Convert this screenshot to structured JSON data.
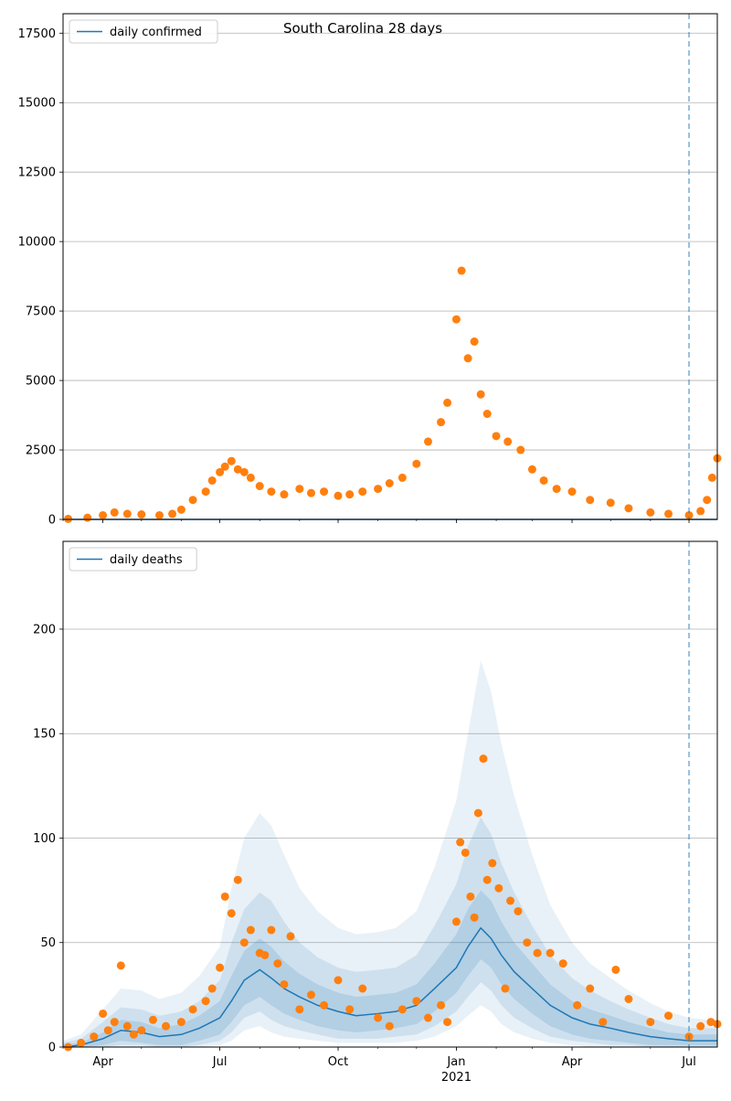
{
  "chart_data": [
    {
      "type": "scatter",
      "title": "South Carolina 28 days",
      "xlabel": "",
      "ylabel": "",
      "ylim": [
        0,
        18200
      ],
      "yticks": [
        0,
        2500,
        5000,
        7500,
        10000,
        12500,
        15000,
        17500
      ],
      "ytick_labels": [
        "0",
        "2500",
        "5000",
        "7500",
        "10000",
        "12500",
        "15000",
        "17500"
      ],
      "grid": "horizontal",
      "legend_position": "top-left",
      "series": [
        {
          "name": "daily confirmed",
          "kind": "line",
          "color": "#1f77b4",
          "x": [
            "2020-03-01",
            "2021-07-23"
          ],
          "y": [
            0,
            0
          ]
        },
        {
          "kind": "scatter",
          "color": "#ff7f0e",
          "x": [
            "2020-03-05",
            "2020-03-20",
            "2020-04-01",
            "2020-04-10",
            "2020-04-20",
            "2020-05-01",
            "2020-05-15",
            "2020-05-25",
            "2020-06-01",
            "2020-06-10",
            "2020-06-20",
            "2020-06-25",
            "2020-07-01",
            "2020-07-05",
            "2020-07-10",
            "2020-07-15",
            "2020-07-20",
            "2020-07-25",
            "2020-08-01",
            "2020-08-10",
            "2020-08-20",
            "2020-09-01",
            "2020-09-10",
            "2020-09-20",
            "2020-10-01",
            "2020-10-10",
            "2020-10-20",
            "2020-11-01",
            "2020-11-10",
            "2020-11-20",
            "2020-12-01",
            "2020-12-10",
            "2020-12-20",
            "2020-12-25",
            "2021-01-01",
            "2021-01-05",
            "2021-01-10",
            "2021-01-15",
            "2021-01-20",
            "2021-01-25",
            "2021-02-01",
            "2021-02-10",
            "2021-02-20",
            "2021-03-01",
            "2021-03-10",
            "2021-03-20",
            "2021-04-01",
            "2021-04-15",
            "2021-05-01",
            "2021-05-15",
            "2021-06-01",
            "2021-06-15",
            "2021-07-01",
            "2021-07-10",
            "2021-07-15",
            "2021-07-19",
            "2021-07-23"
          ],
          "y": [
            20,
            60,
            150,
            250,
            200,
            180,
            150,
            200,
            350,
            700,
            1000,
            1400,
            1700,
            1900,
            2100,
            1800,
            1700,
            1500,
            1200,
            1000,
            900,
            1100,
            950,
            1000,
            850,
            900,
            1000,
            1100,
            1300,
            1500,
            2000,
            2800,
            3500,
            4200,
            7200,
            8950,
            5800,
            6400,
            4500,
            3800,
            3000,
            2800,
            2500,
            1800,
            1400,
            1100,
            1000,
            700,
            600,
            400,
            250,
            200,
            150,
            300,
            700,
            1500,
            2200
          ]
        }
      ],
      "vline": {
        "x": "2021-07-01",
        "color": "#1f77b4",
        "style": "dashed"
      }
    },
    {
      "type": "line",
      "title": "",
      "xlabel": "",
      "ylabel": "",
      "ylim": [
        0,
        242
      ],
      "yticks": [
        0,
        50,
        100,
        150,
        200
      ],
      "ytick_labels": [
        "0",
        "50",
        "100",
        "150",
        "200"
      ],
      "xticks": [
        "2020-04-01",
        "2020-07-01",
        "2020-10-01",
        "2021-01-01",
        "2021-04-01",
        "2021-07-01"
      ],
      "xtick_labels": [
        "Apr",
        "Jul",
        "Oct",
        "Jan",
        "Apr",
        "Jul"
      ],
      "xtick_sublabel": {
        "under": "Jan",
        "text": "2021"
      },
      "grid": "horizontal",
      "legend_position": "top-left",
      "series": [
        {
          "name": "daily deaths",
          "kind": "line",
          "color": "#1f77b4",
          "x": [
            "2020-03-01",
            "2020-03-15",
            "2020-04-01",
            "2020-04-15",
            "2020-05-01",
            "2020-05-15",
            "2020-06-01",
            "2020-06-15",
            "2020-07-01",
            "2020-07-10",
            "2020-07-20",
            "2020-08-01",
            "2020-08-10",
            "2020-08-20",
            "2020-09-01",
            "2020-09-15",
            "2020-10-01",
            "2020-10-15",
            "2020-11-01",
            "2020-11-15",
            "2020-12-01",
            "2020-12-15",
            "2021-01-01",
            "2021-01-10",
            "2021-01-20",
            "2021-01-28",
            "2021-02-05",
            "2021-02-15",
            "2021-03-01",
            "2021-03-15",
            "2021-04-01",
            "2021-04-15",
            "2021-05-01",
            "2021-05-15",
            "2021-06-01",
            "2021-06-15",
            "2021-07-01",
            "2021-07-15",
            "2021-07-23"
          ],
          "y": [
            0,
            1,
            4,
            8,
            7,
            5,
            6,
            9,
            14,
            22,
            32,
            37,
            33,
            28,
            24,
            20,
            17,
            15,
            16,
            17,
            20,
            28,
            38,
            48,
            57,
            52,
            44,
            36,
            28,
            20,
            14,
            11,
            9,
            7,
            5,
            4,
            3,
            3,
            3
          ],
          "band_inner": {
            "lower": [
              0,
              0,
              1,
              3,
              2,
              1,
              1,
              3,
              6,
              12,
              20,
              24,
              20,
              16,
              13,
              10,
              8,
              7,
              8,
              9,
              11,
              17,
              26,
              34,
              42,
              38,
              30,
              23,
              16,
              10,
              6,
              4,
              3,
              2,
              1,
              1,
              1,
              1,
              1
            ],
            "upper": [
              1,
              2,
              7,
              13,
              12,
              9,
              11,
              15,
              22,
              34,
              46,
              52,
              48,
              41,
              35,
              30,
              26,
              24,
              25,
              26,
              30,
              40,
              54,
              66,
              75,
              70,
              60,
              50,
              40,
              30,
              22,
              18,
              15,
              12,
              9,
              7,
              6,
              6,
              6
            ]
          },
          "band_middle": {
            "lower": [
              0,
              0,
              0,
              1,
              1,
              0,
              0,
              1,
              3,
              7,
              14,
              17,
              13,
              10,
              8,
              6,
              4,
              4,
              4,
              5,
              6,
              10,
              17,
              24,
              31,
              27,
              20,
              14,
              9,
              5,
              3,
              2,
              1,
              1,
              0,
              0,
              0,
              0,
              0
            ],
            "upper": [
              2,
              4,
              12,
              19,
              18,
              15,
              17,
              22,
              32,
              50,
              66,
              74,
              70,
              60,
              50,
              43,
              38,
              36,
              37,
              38,
              44,
              58,
              78,
              96,
              110,
              102,
              88,
              74,
              58,
              44,
              33,
              27,
              22,
              18,
              14,
              11,
              9,
              9,
              9
            ]
          },
          "band_outer": {
            "lower": [
              0,
              0,
              0,
              0,
              0,
              0,
              0,
              0,
              1,
              3,
              8,
              10,
              7,
              5,
              4,
              3,
              2,
              2,
              2,
              2,
              3,
              5,
              10,
              15,
              20,
              17,
              11,
              7,
              4,
              2,
              1,
              0,
              0,
              0,
              0,
              0,
              0,
              0,
              0
            ],
            "upper": [
              3,
              6,
              18,
              28,
              27,
              23,
              26,
              34,
              48,
              76,
              100,
              112,
              106,
              92,
              76,
              65,
              57,
              54,
              55,
              57,
              65,
              86,
              118,
              150,
              185,
              170,
              145,
              120,
              92,
              68,
              50,
              40,
              33,
              27,
              21,
              17,
              14,
              13,
              13
            ]
          }
        },
        {
          "kind": "scatter",
          "color": "#ff7f0e",
          "x": [
            "2020-03-05",
            "2020-03-15",
            "2020-03-25",
            "2020-04-01",
            "2020-04-05",
            "2020-04-10",
            "2020-04-15",
            "2020-04-20",
            "2020-04-25",
            "2020-05-01",
            "2020-05-10",
            "2020-05-20",
            "2020-06-01",
            "2020-06-10",
            "2020-06-20",
            "2020-06-25",
            "2020-07-01",
            "2020-07-05",
            "2020-07-10",
            "2020-07-15",
            "2020-07-20",
            "2020-07-25",
            "2020-08-01",
            "2020-08-05",
            "2020-08-10",
            "2020-08-15",
            "2020-08-20",
            "2020-08-25",
            "2020-09-01",
            "2020-09-10",
            "2020-09-20",
            "2020-10-01",
            "2020-10-10",
            "2020-10-20",
            "2020-11-01",
            "2020-11-10",
            "2020-11-20",
            "2020-12-01",
            "2020-12-10",
            "2020-12-20",
            "2020-12-25",
            "2021-01-01",
            "2021-01-04",
            "2021-01-08",
            "2021-01-12",
            "2021-01-15",
            "2021-01-18",
            "2021-01-22",
            "2021-01-25",
            "2021-01-29",
            "2021-02-03",
            "2021-02-08",
            "2021-02-12",
            "2021-02-18",
            "2021-02-25",
            "2021-03-05",
            "2021-03-15",
            "2021-03-25",
            "2021-04-05",
            "2021-04-15",
            "2021-04-25",
            "2021-05-05",
            "2021-05-15",
            "2021-06-01",
            "2021-06-15",
            "2021-07-01",
            "2021-07-10",
            "2021-07-18",
            "2021-07-23"
          ],
          "y": [
            0,
            2,
            5,
            16,
            8,
            12,
            39,
            10,
            6,
            8,
            13,
            10,
            12,
            18,
            22,
            28,
            38,
            72,
            64,
            80,
            50,
            56,
            45,
            44,
            56,
            40,
            30,
            53,
            18,
            25,
            20,
            32,
            18,
            28,
            14,
            10,
            18,
            22,
            14,
            20,
            12,
            60,
            98,
            93,
            72,
            62,
            112,
            138,
            80,
            88,
            76,
            28,
            70,
            65,
            50,
            45,
            45,
            40,
            20,
            28,
            12,
            37,
            23,
            12,
            15,
            5,
            10,
            12,
            11
          ]
        }
      ],
      "vline": {
        "x": "2021-07-01",
        "color": "#1f77b4",
        "style": "dashed"
      }
    }
  ]
}
